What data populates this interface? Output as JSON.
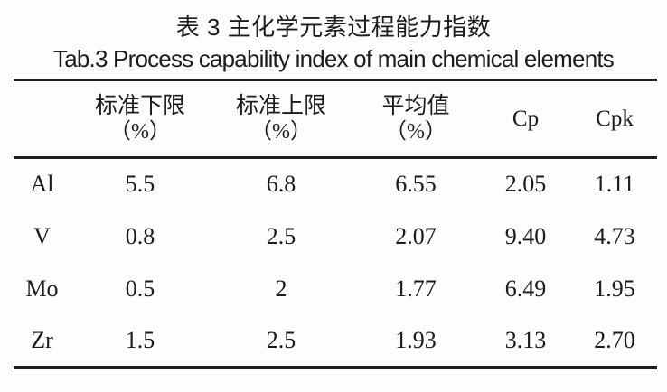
{
  "page": {
    "title_zh": "表 3 主化学元素过程能力指数",
    "title_en": "Tab.3 Process capability index of main chemical elements"
  },
  "table": {
    "columns": [
      {
        "label": "",
        "unit": ""
      },
      {
        "label": "标准下限",
        "unit": "（%）"
      },
      {
        "label": "标准上限",
        "unit": "（%）"
      },
      {
        "label": "平均值",
        "unit": "（%）"
      },
      {
        "label": "Cp",
        "unit": ""
      },
      {
        "label": "Cpk",
        "unit": ""
      }
    ],
    "rows": [
      {
        "element": "Al",
        "values": [
          "5.5",
          "6.8",
          "6.55",
          "2.05",
          "1.11"
        ]
      },
      {
        "element": "V",
        "values": [
          "0.8",
          "2.5",
          "2.07",
          "9.40",
          "4.73"
        ]
      },
      {
        "element": "Mo",
        "values": [
          "0.5",
          "2",
          "1.77",
          "6.49",
          "1.95"
        ]
      },
      {
        "element": "Zr",
        "values": [
          "1.5",
          "2.5",
          "1.93",
          "3.13",
          "2.70"
        ]
      }
    ]
  },
  "colors": {
    "text": "#1c1c1c",
    "rule": "#1e1e1e",
    "background": "#fdfdfd"
  }
}
